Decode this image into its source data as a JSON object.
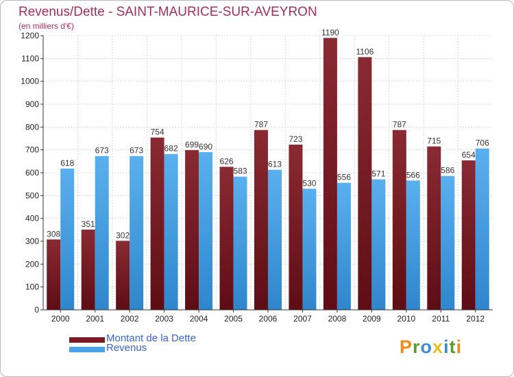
{
  "header": {
    "title": "Revenus/Dette - SAINT-MAURICE-SUR-AVEYRON",
    "subtitle": "(en milliers d'€)"
  },
  "legend": {
    "items": [
      {
        "label": "Montant de la Dette",
        "color": "#7a1a22"
      },
      {
        "label": "Revenus",
        "color": "#4aa3e6"
      }
    ]
  },
  "logo": {
    "text": "Proxiti"
  },
  "chart_data": {
    "type": "bar",
    "title": "Revenus/Dette - SAINT-MAURICE-SUR-AVEYRON",
    "ylabel": "(en milliers d'€)",
    "categories": [
      "2000",
      "2001",
      "2002",
      "2003",
      "2004",
      "2005",
      "2006",
      "2007",
      "2008",
      "2009",
      "2010",
      "2011",
      "2012"
    ],
    "series": [
      {
        "name": "Montant de la Dette",
        "color": "#7a1a22",
        "values": [
          308,
          351,
          302,
          754,
          699,
          626,
          787,
          723,
          1190,
          1106,
          787,
          715,
          654
        ]
      },
      {
        "name": "Revenus",
        "color": "#4aa3e6",
        "values": [
          618,
          673,
          673,
          682,
          690,
          583,
          613,
          530,
          556,
          571,
          566,
          586,
          706
        ]
      }
    ],
    "ylim": [
      0,
      1200
    ],
    "yticks": [
      0,
      100,
      200,
      300,
      400,
      500,
      600,
      700,
      800,
      900,
      1000,
      1100,
      1200
    ],
    "grid": true,
    "legend_position": "bottom-left"
  }
}
